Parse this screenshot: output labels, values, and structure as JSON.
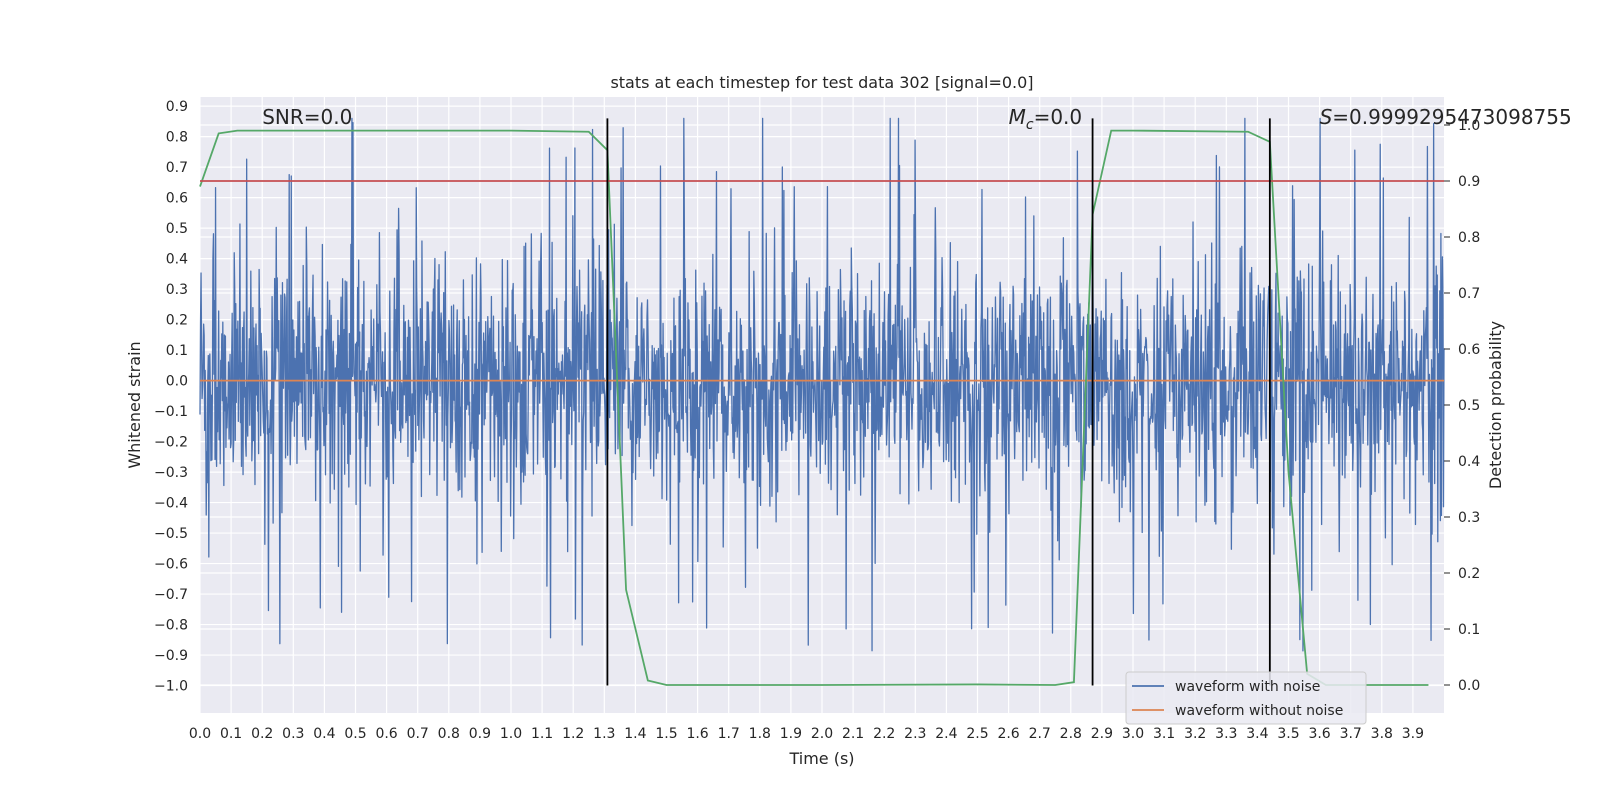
{
  "chart_data": {
    "type": "line",
    "title": "stats at each timestep for test data 302 [signal=0.0]",
    "xlabel": "Time (s)",
    "ylabel": "Whitened strain",
    "y2label": "Detection probability",
    "xlim": [
      0.0,
      4.0
    ],
    "ylim": [
      -1.09,
      0.93
    ],
    "y2lim": [
      -0.05,
      1.05
    ],
    "xticks": [
      "0.0",
      "0.1",
      "0.2",
      "0.3",
      "0.4",
      "0.5",
      "0.6",
      "0.7",
      "0.8",
      "0.9",
      "1.0",
      "1.1",
      "1.2",
      "1.3",
      "1.4",
      "1.5",
      "1.6",
      "1.7",
      "1.8",
      "1.9",
      "2.0",
      "2.1",
      "2.2",
      "2.3",
      "2.4",
      "2.5",
      "2.6",
      "2.7",
      "2.8",
      "2.9",
      "3.0",
      "3.1",
      "3.2",
      "3.3",
      "3.4",
      "3.5",
      "3.6",
      "3.7",
      "3.8",
      "3.9"
    ],
    "yticks": [
      "0.9",
      "0.8",
      "0.7",
      "0.6",
      "0.5",
      "0.4",
      "0.3",
      "0.2",
      "0.1",
      "0.0",
      "−0.1",
      "−0.2",
      "−0.3",
      "−0.4",
      "−0.5",
      "−0.6",
      "−0.7",
      "−0.8",
      "−0.9",
      "−1.0"
    ],
    "y2ticks": [
      "1.0",
      "0.9",
      "0.8",
      "0.7",
      "0.6",
      "0.5",
      "0.4",
      "0.3",
      "0.2",
      "0.1",
      "0.0"
    ],
    "grid": true,
    "legend_position": "lower-right",
    "annotations": [
      {
        "text": "SNR=0.0",
        "x": 0.2
      },
      {
        "text_math": "M",
        "text_sub": "c",
        "text_rest": "=0.0",
        "x": 2.6
      },
      {
        "text_math": "S",
        "text_rest": "=0.9999295473098755",
        "x": 3.6
      }
    ],
    "series": [
      {
        "name": "waveform with noise",
        "color": "#4c72b0",
        "kind": "noise",
        "y_range": [
          -1.0,
          0.86
        ]
      },
      {
        "name": "waveform without noise",
        "color": "#dd8452",
        "x": [
          0.0,
          4.0
        ],
        "y": [
          0.0,
          0.0
        ]
      },
      {
        "name": "",
        "color": "#55a868",
        "axis": "right",
        "x": [
          0.0,
          0.06,
          0.12,
          0.18,
          0.5,
          1.0,
          1.25,
          1.31,
          1.37,
          1.44,
          1.5,
          2.0,
          2.5,
          2.75,
          2.81,
          2.87,
          2.93,
          3.0,
          3.37,
          3.44,
          3.5,
          3.56,
          3.62,
          3.68,
          3.95
        ],
        "y": [
          0.89,
          0.985,
          0.99,
          0.99,
          0.99,
          0.99,
          0.988,
          0.955,
          0.17,
          0.008,
          0.0,
          0.0,
          0.001,
          0.0,
          0.005,
          0.84,
          0.99,
          0.99,
          0.988,
          0.97,
          0.38,
          0.02,
          0.0,
          0.0,
          0.0
        ]
      },
      {
        "name": "",
        "color": "#c44e52",
        "axis": "right",
        "x": [
          0.0,
          4.0
        ],
        "y": [
          0.9,
          0.9
        ]
      }
    ],
    "vlines": {
      "color": "#000000",
      "x": [
        1.31,
        2.87,
        3.44
      ],
      "y_range": [
        -1.0,
        0.86
      ]
    }
  }
}
